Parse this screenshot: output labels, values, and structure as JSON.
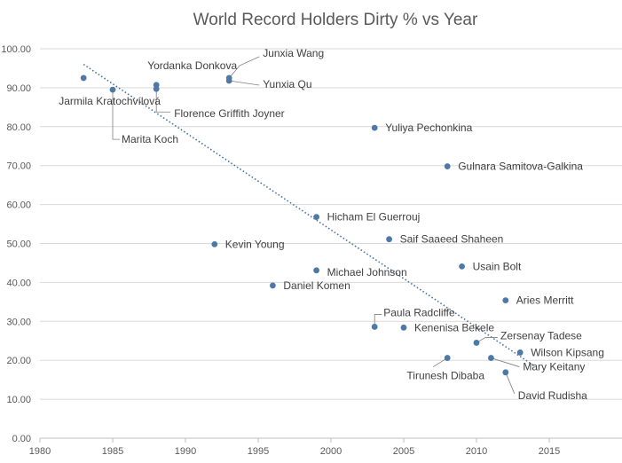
{
  "chart_data": {
    "type": "scatter",
    "title": "World Record Holders Dirty % vs Year",
    "xlabel": "",
    "ylabel": "",
    "xlim": [
      1980,
      2020
    ],
    "ylim": [
      0,
      100
    ],
    "x_ticks": [
      1980,
      1985,
      1990,
      1995,
      2000,
      2005,
      2010,
      2015
    ],
    "y_ticks": [
      "0.00",
      "10.00",
      "20.00",
      "30.00",
      "40.00",
      "50.00",
      "60.00",
      "70.00",
      "80.00",
      "90.00",
      "100.00"
    ],
    "grid": true,
    "marker_color": "#4e79a7",
    "trendline": {
      "type": "linear",
      "x": [
        1983,
        2014
      ],
      "y": [
        96,
        18.5
      ],
      "color": "#41719c"
    },
    "points": [
      {
        "name": "Jarmila Kratochvílová",
        "x": 1983,
        "y": 92.5
      },
      {
        "name": "Marita Koch",
        "x": 1985,
        "y": 89.5
      },
      {
        "name": "Yordanka Donkova",
        "x": 1988,
        "y": 90.7
      },
      {
        "name": "Florence Griffith Joyner",
        "x": 1988,
        "y": 89.7
      },
      {
        "name": "Junxia Wang",
        "x": 1993,
        "y": 92.5
      },
      {
        "name": "Yunxia Qu",
        "x": 1993,
        "y": 91.8
      },
      {
        "name": "Kevin Young",
        "x": 1992,
        "y": 49.8
      },
      {
        "name": "Daniel Komen",
        "x": 1996,
        "y": 39.2
      },
      {
        "name": "Hicham El Guerrouj",
        "x": 1999,
        "y": 56.8
      },
      {
        "name": "Michael Johnson",
        "x": 1999,
        "y": 43.1
      },
      {
        "name": "Yuliya Pechonkina",
        "x": 2003,
        "y": 79.7
      },
      {
        "name": "Paula Radcliffe",
        "x": 2003,
        "y": 28.6
      },
      {
        "name": "Saif Saaeed Shaheen",
        "x": 2004,
        "y": 51.1
      },
      {
        "name": "Kenenisa Bekele",
        "x": 2005,
        "y": 28.4
      },
      {
        "name": "Gulnara Samitova-Galkina",
        "x": 2008,
        "y": 69.8
      },
      {
        "name": "Tirunesh Dibaba",
        "x": 2008,
        "y": 20.6
      },
      {
        "name": "Usain Bolt",
        "x": 2009,
        "y": 44.1
      },
      {
        "name": "Zersenay Tadese",
        "x": 2010,
        "y": 24.5
      },
      {
        "name": "Mary Keitany",
        "x": 2011,
        "y": 20.6
      },
      {
        "name": "Aries Merritt",
        "x": 2012,
        "y": 35.4
      },
      {
        "name": "David Rudisha",
        "x": 2012,
        "y": 16.9
      },
      {
        "name": "Wilson Kipsang",
        "x": 2013,
        "y": 22.0
      }
    ]
  }
}
